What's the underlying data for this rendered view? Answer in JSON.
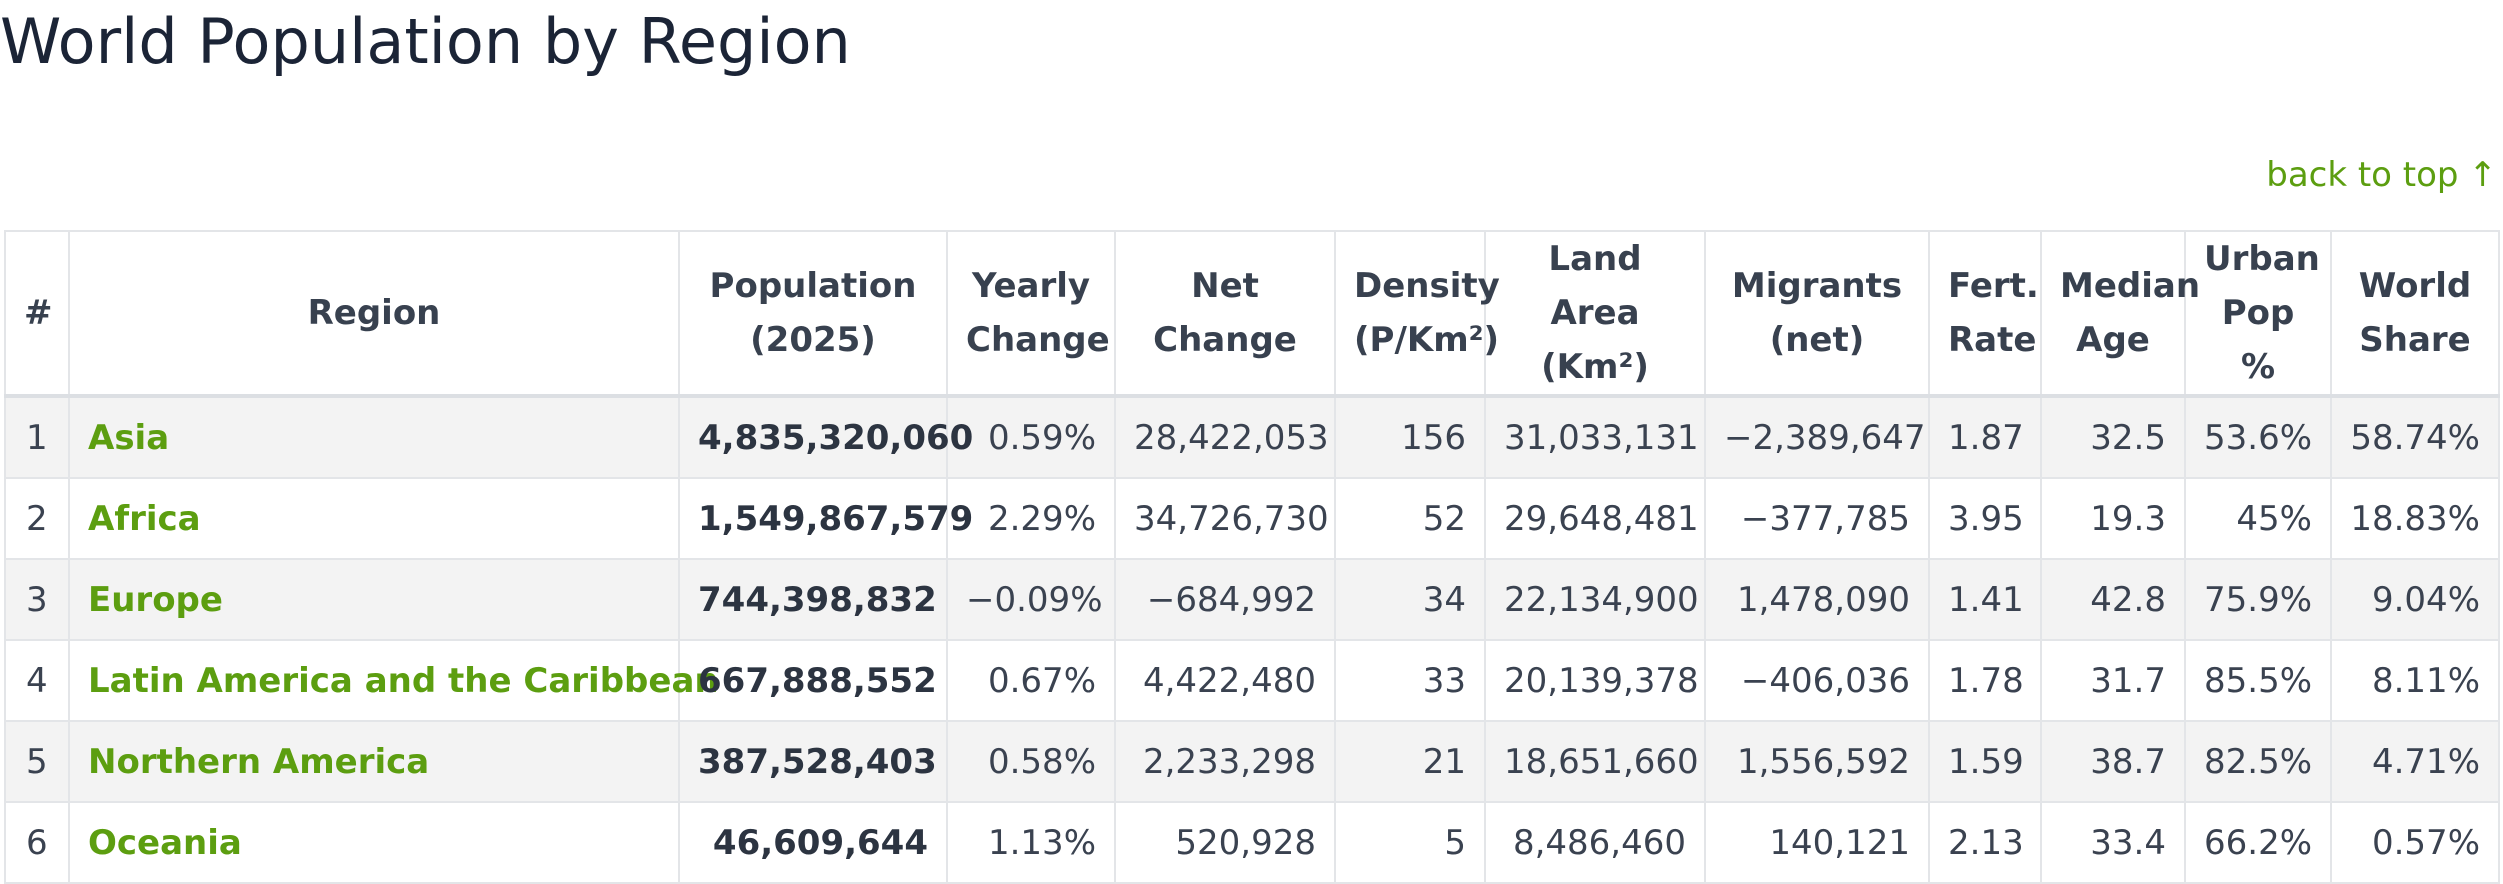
{
  "page": {
    "title": "World Population by Region",
    "back_to_top": "back to top",
    "back_to_top_arrow": "↑"
  },
  "table": {
    "headers": [
      [
        "#"
      ],
      [
        "Region"
      ],
      [
        "Population",
        "(2025)"
      ],
      [
        "Yearly",
        "Change"
      ],
      [
        "Net",
        "Change"
      ],
      [
        "Density",
        "(P/Km²)"
      ],
      [
        "Land Area",
        "(Km²)"
      ],
      [
        "Migrants",
        "(net)"
      ],
      [
        "Fert.",
        "Rate"
      ],
      [
        "Median",
        "Age"
      ],
      [
        "Urban",
        "Pop %"
      ],
      [
        "World",
        "Share"
      ]
    ],
    "rows": [
      [
        "1",
        "Asia",
        "4,835,320,060",
        "0.59%",
        "28,422,053",
        "156",
        "31,033,131",
        "−2,389,647",
        "1.87",
        "32.5",
        "53.6%",
        "58.74%"
      ],
      [
        "2",
        "Africa",
        "1,549,867,579",
        "2.29%",
        "34,726,730",
        "52",
        "29,648,481",
        "−377,785",
        "3.95",
        "19.3",
        "45%",
        "18.83%"
      ],
      [
        "3",
        "Europe",
        "744,398,832",
        "−0.09%",
        "−684,992",
        "34",
        "22,134,900",
        "1,478,090",
        "1.41",
        "42.8",
        "75.9%",
        "9.04%"
      ],
      [
        "4",
        "Latin America and the Caribbean",
        "667,888,552",
        "0.67%",
        "4,422,480",
        "33",
        "20,139,378",
        "−406,036",
        "1.78",
        "31.7",
        "85.5%",
        "8.11%"
      ],
      [
        "5",
        "Northern America",
        "387,528,403",
        "0.58%",
        "2,233,298",
        "21",
        "18,651,660",
        "1,556,592",
        "1.59",
        "38.7",
        "82.5%",
        "4.71%"
      ],
      [
        "6",
        "Oceania",
        "46,609,644",
        "1.13%",
        "520,928",
        "5",
        "8,486,460",
        "140,121",
        "2.13",
        "33.4",
        "66.2%",
        "0.57%"
      ]
    ]
  },
  "colors": {
    "link": "#5c9e10",
    "title": "#1b2436",
    "row_alt": "#f3f3f3",
    "border": "#e3e5e8"
  }
}
